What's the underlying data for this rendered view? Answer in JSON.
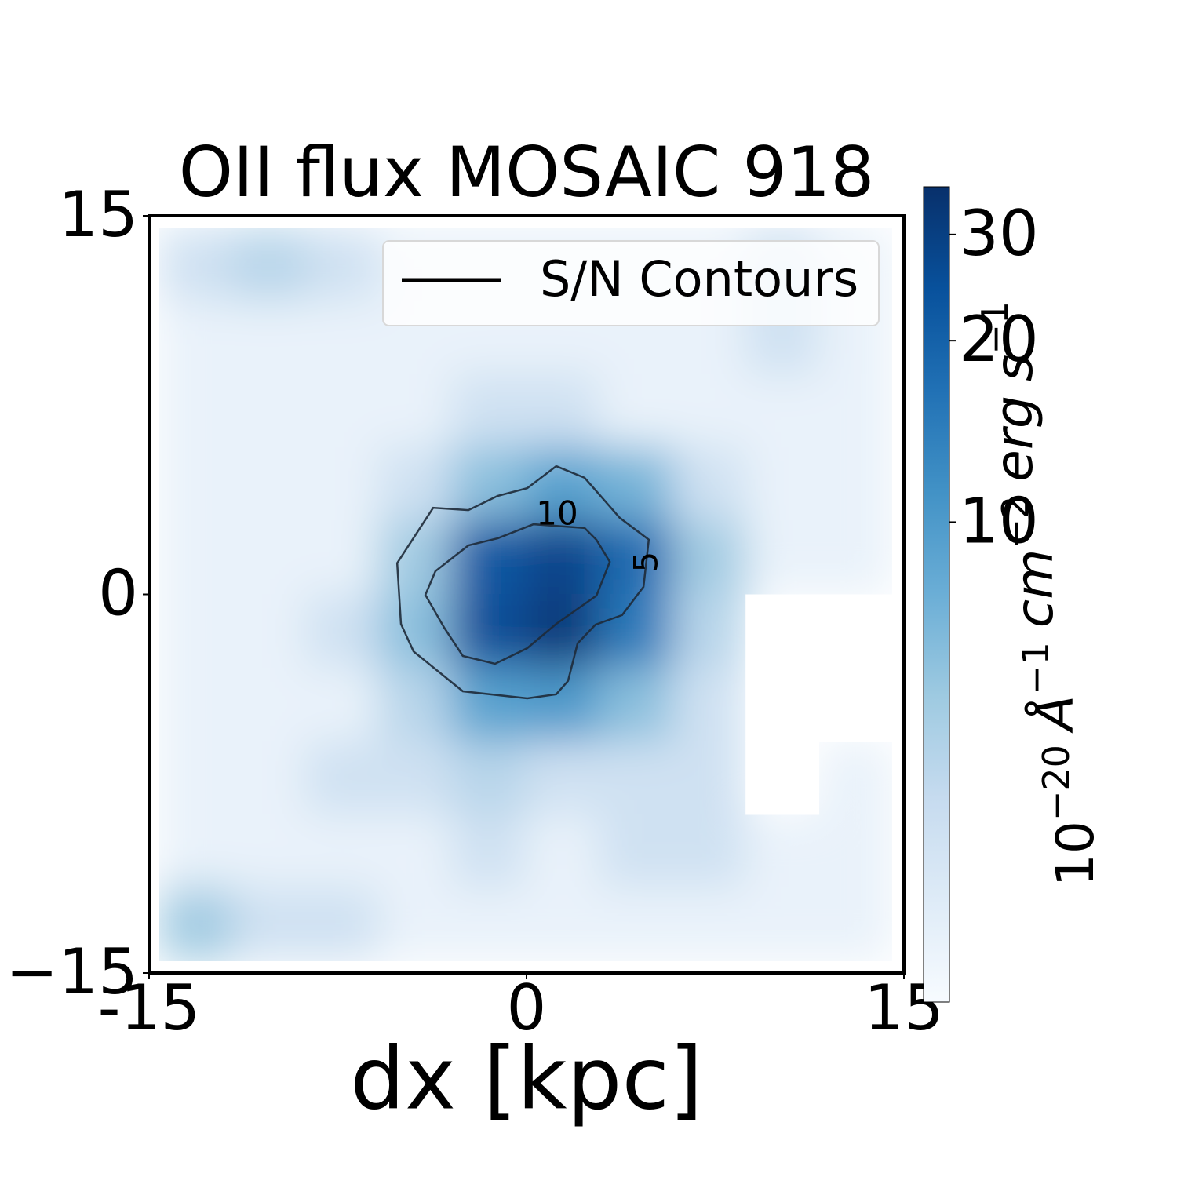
{
  "chart_data": {
    "type": "heatmap",
    "title": "OII flux MOSAIC 918",
    "x_label": "dx [kpc]",
    "xlim": [
      -15,
      15
    ],
    "ylim": [
      -15,
      15
    ],
    "xticks": [
      {
        "value": -15,
        "label": "-15"
      },
      0,
      15
    ],
    "yticks": [
      {
        "value": -15,
        "label": "−15"
      },
      0,
      15
    ],
    "values": [
      [
        3,
        4,
        3,
        2,
        2,
        2,
        2,
        2,
        3,
        2
      ],
      [
        2,
        2,
        2,
        2,
        2,
        2,
        2,
        2,
        3,
        2
      ],
      [
        2,
        2,
        2,
        2,
        3,
        3,
        2,
        2,
        2,
        2
      ],
      [
        2,
        2,
        2,
        3,
        6,
        9,
        7,
        3,
        2,
        2
      ],
      [
        2,
        2,
        2,
        5,
        22,
        28,
        18,
        5,
        2,
        2
      ],
      [
        2,
        2,
        3,
        6,
        25,
        32,
        15,
        4,
        null,
        null
      ],
      [
        2,
        2,
        2,
        4,
        9,
        10,
        6,
        3,
        null,
        null
      ],
      [
        2,
        2,
        3,
        3,
        4,
        3,
        3,
        3,
        null,
        2
      ],
      [
        2,
        2,
        2,
        2,
        3,
        2,
        3,
        3,
        2,
        2
      ],
      [
        5,
        3,
        3,
        2,
        2,
        2,
        2,
        2,
        2,
        2
      ]
    ],
    "colormap": [
      "#f7fbff",
      "#deebf7",
      "#c6dbef",
      "#9ecae1",
      "#6baed6",
      "#4292c6",
      "#2171b5",
      "#08519c",
      "#08306b"
    ],
    "log_scale_color": true,
    "clim": [
      1.6,
      36
    ],
    "colorbar_ticks": [
      10,
      20,
      30
    ],
    "colorbar_label": [
      {
        "base": "10",
        "exp": "−20"
      },
      {
        "base": "Å",
        "exp": "−1"
      },
      {
        "base": "cm",
        "exp": "−2"
      },
      {
        "base": "erg"
      },
      {
        "base": "s",
        "exp": "−1"
      }
    ],
    "contours": [
      {
        "level": 5,
        "color": "#1e2a38",
        "x": [
          1.18,
          0.03,
          -1.15,
          -2.31,
          -3.71,
          -5.14,
          -4.99,
          -4.49,
          -2.53,
          -1.15,
          0.03,
          1.18,
          1.65,
          2.03,
          2.74,
          3.8,
          4.65,
          4.86,
          3.71,
          2.31,
          1.18
        ],
        "y": [
          5.08,
          4.21,
          3.9,
          3.34,
          3.43,
          1.24,
          -1.17,
          -2.26,
          -3.84,
          -3.99,
          -4.12,
          -3.96,
          -3.43,
          -1.94,
          -1.2,
          -0.82,
          0.3,
          2.17,
          3.03,
          4.62,
          5.08
        ]
      },
      {
        "level": 10,
        "color": "#1e2a38",
        "x": [
          -2.31,
          -3.62,
          -4.02,
          -3.27,
          -2.53,
          -1.25,
          0.03,
          1.18,
          2.78,
          3.31,
          2.78,
          2.31,
          0.28,
          -1.15,
          -2.31
        ],
        "y": [
          1.94,
          0.92,
          -0.02,
          -1.32,
          -2.44,
          -2.75,
          -2.13,
          -1.17,
          -0.05,
          1.29,
          2.16,
          2.63,
          2.78,
          2.22,
          1.94
        ]
      }
    ],
    "legend": {
      "label": "S/N Contours",
      "color": "#000000",
      "position": "upper right"
    }
  }
}
